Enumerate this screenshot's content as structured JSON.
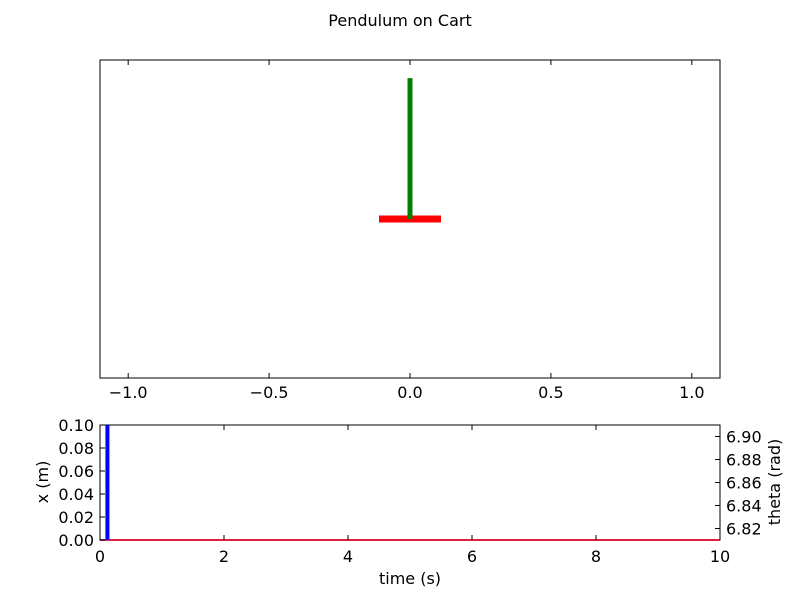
{
  "chart_data": [
    {
      "type": "line",
      "title": "Pendulum on Cart",
      "xlim": [
        -1.1,
        1.1
      ],
      "xticks": [
        -1.0,
        -0.5,
        0.0,
        0.5,
        1.0
      ],
      "xtick_labels": [
        "−1.0",
        "−0.5",
        "0.0",
        "0.5",
        "1.0"
      ],
      "yticks_shown": false,
      "series": [
        {
          "values": [
            [
              -0.11,
              0.0
            ],
            [
              0.11,
              0.0
            ]
          ],
          "color": "#ff0000"
        },
        {
          "values": [
            [
              0.0,
              0.0
            ],
            [
              0.0,
              0.5
            ]
          ],
          "color": "#008000"
        }
      ]
    },
    {
      "type": "line",
      "xlabel": "time (s)",
      "ylabel": "x (m)",
      "ylabel_right": "theta (rad)",
      "xlim": [
        0,
        10
      ],
      "xticks": [
        0,
        2,
        4,
        6,
        8,
        10
      ],
      "xtick_labels": [
        "0",
        "2",
        "4",
        "6",
        "8",
        "10"
      ],
      "ylim": [
        0,
        0.1
      ],
      "yticks": [
        0.0,
        0.02,
        0.04,
        0.06,
        0.08,
        0.1
      ],
      "ytick_labels": [
        "0.00",
        "0.02",
        "0.04",
        "0.06",
        "0.08",
        "0.10"
      ],
      "ylim_right": [
        6.81,
        6.91
      ],
      "yticks_right": [
        6.82,
        6.84,
        6.86,
        6.88,
        6.9
      ],
      "ytick_labels_right": [
        "6.82",
        "6.84",
        "6.86",
        "6.88",
        "6.90"
      ],
      "time_marker": {
        "x": 0.12,
        "color": "#0000ff"
      },
      "series": [
        {
          "x": [
            0,
            10
          ],
          "values": [
            0.0,
            0.0
          ],
          "axis": "left",
          "color": "#0000ff"
        },
        {
          "x": [
            0,
            10
          ],
          "values": [
            6.81,
            6.81
          ],
          "axis": "right",
          "color": "#ff0000"
        }
      ]
    }
  ]
}
